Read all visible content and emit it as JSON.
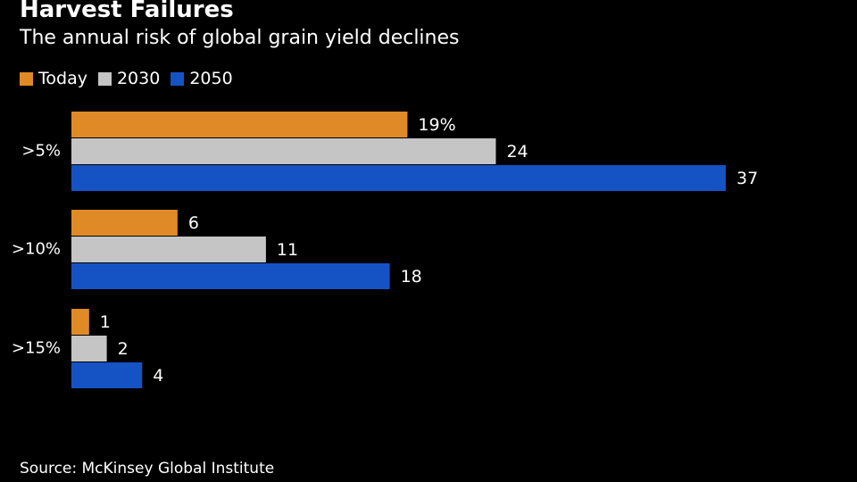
{
  "chart_data": {
    "type": "bar",
    "orientation": "horizontal",
    "title": "Harvest Failures",
    "subtitle": "The annual risk of global grain yield declines",
    "categories": [
      ">5%",
      ">10%",
      ">15%"
    ],
    "series": [
      {
        "name": "Today",
        "color": "#e08a27",
        "values": [
          19,
          6,
          1
        ],
        "labels": [
          "19%",
          "6",
          "1"
        ]
      },
      {
        "name": "2030",
        "color": "#c5c5c5",
        "values": [
          24,
          11,
          2
        ],
        "labels": [
          "24",
          "11",
          "2"
        ]
      },
      {
        "name": "2050",
        "color": "#1553c4",
        "values": [
          37,
          18,
          4
        ],
        "labels": [
          "37",
          "18",
          "4"
        ]
      }
    ],
    "xlim": [
      0,
      40
    ],
    "grid": false,
    "legend": "top-left",
    "source": "Source: McKinsey Global Institute"
  }
}
